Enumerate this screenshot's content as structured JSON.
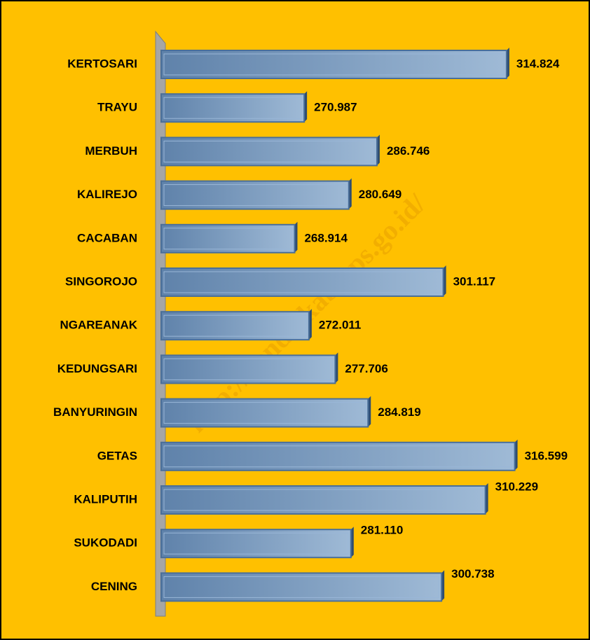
{
  "chart_data": {
    "type": "barh",
    "categories": [
      "KERTOSARI",
      "TRAYU",
      "MERBUH",
      "KALIREJO",
      "CACABAN",
      "SINGOROJO",
      "NGAREANAK",
      "KEDUNGSARI",
      "BANYURINGIN",
      "GETAS",
      "KALIPUTIH",
      "SUKODADI",
      "CENING"
    ],
    "values": [
      314824,
      270987,
      286746,
      280649,
      268914,
      301117,
      272011,
      277706,
      284819,
      316599,
      310229,
      281110,
      300738
    ],
    "value_labels": [
      "314.824",
      "270.987",
      "286.746",
      "280.649",
      "268.914",
      "301.117",
      "272.011",
      "277.706",
      "284.819",
      "316.599",
      "310.229",
      "281.110",
      "300.738"
    ],
    "color": "#6f92b8",
    "xlim": [
      240000,
      320000
    ],
    "watermark": "http://kendalkab.bps.go.id/"
  }
}
